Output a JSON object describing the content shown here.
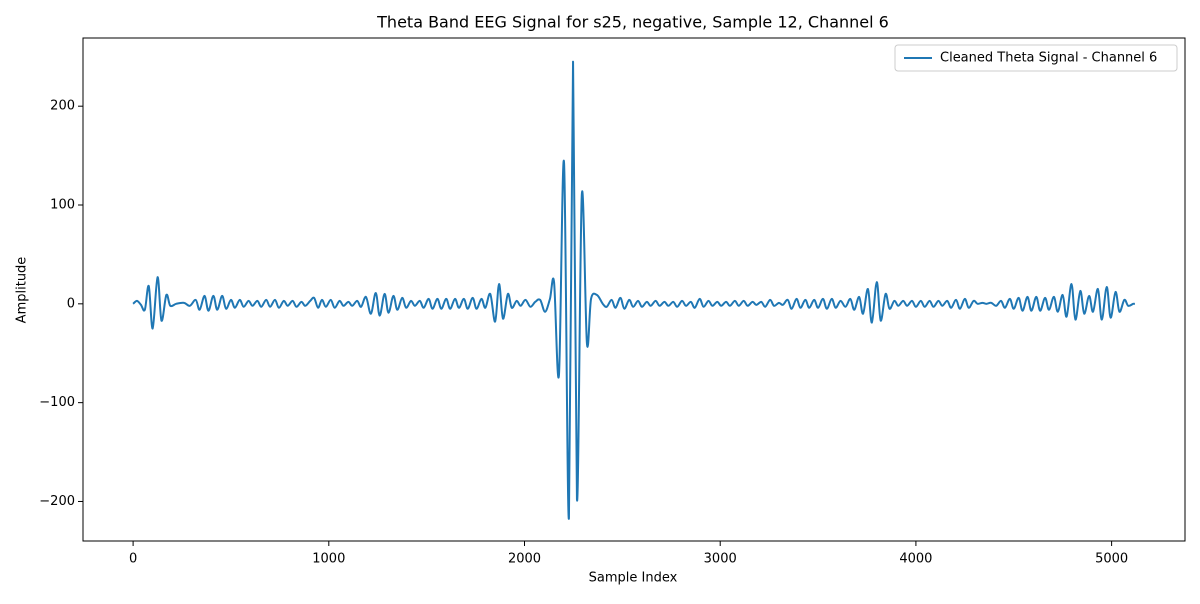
{
  "chart_data": {
    "type": "line",
    "title": "Theta Band EEG Signal for s25, negative, Sample 12, Channel 6",
    "xlabel": "Sample Index",
    "ylabel": "Amplitude",
    "x": [
      0,
      20,
      40,
      60,
      80,
      100,
      125,
      145,
      170,
      190,
      220,
      260,
      290,
      320,
      340,
      365,
      385,
      410,
      430,
      455,
      475,
      500,
      520,
      545,
      565,
      590,
      610,
      635,
      655,
      680,
      700,
      725,
      745,
      770,
      790,
      815,
      835,
      860,
      880,
      905,
      925,
      945,
      965,
      985,
      1010,
      1030,
      1055,
      1075,
      1100,
      1120,
      1145,
      1165,
      1190,
      1215,
      1240,
      1260,
      1285,
      1305,
      1330,
      1350,
      1375,
      1395,
      1420,
      1440,
      1465,
      1485,
      1510,
      1530,
      1555,
      1575,
      1600,
      1620,
      1645,
      1665,
      1690,
      1710,
      1735,
      1755,
      1780,
      1800,
      1825,
      1850,
      1870,
      1890,
      1915,
      1935,
      1960,
      1980,
      2005,
      2030,
      2055,
      2080,
      2105,
      2130,
      2151,
      2176,
      2202,
      2227,
      2248,
      2268,
      2293,
      2319,
      2340,
      2370,
      2400,
      2420,
      2445,
      2465,
      2490,
      2510,
      2535,
      2555,
      2580,
      2600,
      2625,
      2645,
      2670,
      2690,
      2715,
      2735,
      2760,
      2780,
      2805,
      2825,
      2850,
      2870,
      2895,
      2915,
      2940,
      2960,
      2985,
      3005,
      3030,
      3050,
      3075,
      3095,
      3120,
      3140,
      3165,
      3185,
      3210,
      3230,
      3255,
      3275,
      3300,
      3320,
      3345,
      3365,
      3390,
      3410,
      3435,
      3455,
      3480,
      3500,
      3525,
      3545,
      3570,
      3590,
      3615,
      3640,
      3665,
      3685,
      3710,
      3730,
      3755,
      3775,
      3800,
      3820,
      3845,
      3865,
      3890,
      3910,
      3935,
      3955,
      3980,
      4000,
      4025,
      4045,
      4070,
      4090,
      4115,
      4135,
      4160,
      4180,
      4205,
      4225,
      4250,
      4270,
      4295,
      4315,
      4340,
      4360,
      4385,
      4410,
      4435,
      4455,
      4480,
      4500,
      4525,
      4545,
      4570,
      4590,
      4615,
      4635,
      4660,
      4680,
      4705,
      4725,
      4750,
      4770,
      4795,
      4815,
      4840,
      4860,
      4885,
      4905,
      4930,
      4950,
      4975,
      4995,
      5020,
      5040,
      5065,
      5085,
      5110,
      5119
    ],
    "series": [
      {
        "name": "Cleaned Theta Signal - Channel 6",
        "color": "#1f77b4",
        "values": [
          0,
          3,
          -1,
          -6,
          18,
          -25,
          27,
          -17,
          9,
          -2,
          0,
          1,
          -2,
          4,
          -6,
          8,
          -7,
          8,
          -6,
          8,
          -5,
          4,
          -4,
          4,
          -3,
          3,
          -2,
          3,
          -3,
          4,
          -3,
          4,
          -4,
          3,
          -2,
          3,
          -3,
          2,
          -2,
          3,
          6,
          -4,
          4,
          -3,
          4,
          -4,
          3,
          -2,
          2,
          -2,
          3,
          -3,
          7,
          -10,
          11,
          -12,
          10,
          -9,
          8,
          -6,
          6,
          -4,
          3,
          -2,
          3,
          -4,
          5,
          -5,
          5,
          -5,
          5,
          -5,
          5,
          -4,
          5,
          -5,
          6,
          -5,
          5,
          -4,
          10,
          -18,
          20,
          -15,
          10,
          -4,
          3,
          -2,
          4,
          -3,
          2,
          4,
          -8,
          5,
          22,
          -72,
          143,
          -217,
          245,
          -198,
          111,
          -40,
          5,
          9,
          0,
          -3,
          4,
          -4,
          6,
          -5,
          4,
          -3,
          3,
          -3,
          2,
          -2,
          3,
          -2,
          2,
          -2,
          2,
          -3,
          3,
          -2,
          2,
          -4,
          5,
          -3,
          3,
          -2,
          2,
          -2,
          2,
          -2,
          3,
          -2,
          3,
          -2,
          2,
          -1,
          2,
          -3,
          4,
          -2,
          1,
          -1,
          4,
          -5,
          5,
          -4,
          4,
          -4,
          4,
          -4,
          5,
          -5,
          5,
          -4,
          3,
          -3,
          5,
          -6,
          7,
          -10,
          15,
          -19,
          22,
          -17,
          10,
          -5,
          3,
          -2,
          3,
          -2,
          3,
          -3,
          3,
          -3,
          3,
          -3,
          3,
          -2,
          3,
          -4,
          4,
          -5,
          5,
          -4,
          3,
          0,
          1,
          0,
          1,
          -2,
          3,
          -4,
          5,
          -5,
          6,
          -7,
          7,
          -7,
          7,
          -7,
          6,
          -6,
          7,
          -8,
          9,
          -13,
          20,
          -16,
          13,
          -10,
          8,
          -8,
          15,
          -16,
          17,
          -14,
          12,
          -8,
          4,
          -2,
          0,
          0
        ]
      }
    ],
    "xlim": [
      -256,
      5375
    ],
    "ylim": [
      -240,
      269
    ],
    "xticks": [
      0,
      1000,
      2000,
      3000,
      4000,
      5000
    ],
    "yticks": [
      {
        "value": -200,
        "label": "−200"
      },
      {
        "value": -100,
        "label": "−100"
      },
      0,
      100,
      200
    ],
    "legend": "upper right"
  }
}
